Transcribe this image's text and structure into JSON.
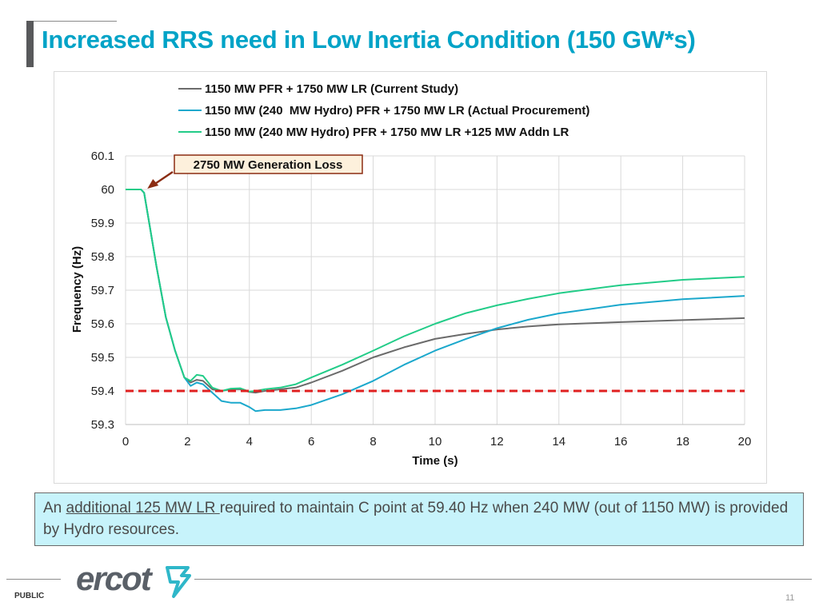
{
  "slide": {
    "title": "Increased RRS need in Low Inertia Condition (150 GW*s)",
    "note_prefix": "An ",
    "note_underlined": "additional 125 MW LR ",
    "note_suffix": " required to maintain C point at 59.40 Hz when 240 MW (out of 1150 MW) is provided by Hydro resources.",
    "logo_text": "ercot",
    "footer_label": "PUBLIC",
    "page_number": "11"
  },
  "chart_data": {
    "type": "line",
    "title": "",
    "xlabel": "Time (s)",
    "ylabel": "Frequency (Hz)",
    "xlim": [
      0,
      20
    ],
    "ylim": [
      59.3,
      60.1
    ],
    "xticks": [
      0,
      2,
      4,
      6,
      8,
      10,
      12,
      14,
      16,
      18,
      20
    ],
    "yticks": [
      59.3,
      59.4,
      59.5,
      59.6,
      59.7,
      59.8,
      59.9,
      60,
      60.1
    ],
    "ytick_labels": [
      "59.3",
      "59.4",
      "59.5",
      "59.6",
      "59.7",
      "59.8",
      "59.9",
      "60",
      "60.1"
    ],
    "grid": true,
    "legend_position": "top",
    "annotation": {
      "text": "2750 MW Generation Loss",
      "x": 0.6,
      "y": 60.0
    },
    "reference_line": {
      "name": "59.4 Hz threshold",
      "y": 59.4,
      "color": "#e02020",
      "style": "dashed"
    },
    "series": [
      {
        "name": "1150 MW PFR + 1750 MW LR (Current Study)",
        "color": "#6b6b6b",
        "x": [
          0,
          0.5,
          0.6,
          0.8,
          1.0,
          1.3,
          1.6,
          1.9,
          2.1,
          2.3,
          2.5,
          2.8,
          3.1,
          3.4,
          3.7,
          4.0,
          4.2,
          4.5,
          5.0,
          5.5,
          6.0,
          7.0,
          8.0,
          9.0,
          10.0,
          11.0,
          12.0,
          13.0,
          14.0,
          16.0,
          18.0,
          20.0
        ],
        "values": [
          60.0,
          60.0,
          59.99,
          59.88,
          59.77,
          59.62,
          59.52,
          59.44,
          59.425,
          59.433,
          59.43,
          59.405,
          59.4,
          59.405,
          59.405,
          59.397,
          59.395,
          59.4,
          59.405,
          59.41,
          59.425,
          59.46,
          59.5,
          59.53,
          59.555,
          59.57,
          59.583,
          59.592,
          59.598,
          59.605,
          59.611,
          59.617
        ]
      },
      {
        "name": "1150 MW (240  MW Hydro) PFR + 1750 MW LR (Actual Procurement)",
        "color": "#1ba8cc",
        "x": [
          0,
          0.5,
          0.6,
          0.8,
          1.0,
          1.3,
          1.6,
          1.9,
          2.1,
          2.3,
          2.5,
          2.8,
          3.1,
          3.4,
          3.7,
          4.0,
          4.2,
          4.5,
          5.0,
          5.5,
          6.0,
          7.0,
          8.0,
          9.0,
          10.0,
          11.0,
          12.0,
          13.0,
          14.0,
          16.0,
          18.0,
          20.0
        ],
        "values": [
          60.0,
          60.0,
          59.99,
          59.88,
          59.77,
          59.62,
          59.52,
          59.44,
          59.415,
          59.425,
          59.42,
          59.395,
          59.37,
          59.365,
          59.365,
          59.352,
          59.34,
          59.343,
          59.343,
          59.348,
          59.358,
          59.39,
          59.43,
          59.478,
          59.52,
          59.555,
          59.587,
          59.612,
          59.631,
          59.657,
          59.673,
          59.683
        ]
      },
      {
        "name": "1150 MW (240 MW Hydro) PFR + 1750 MW LR +125 MW Addn LR",
        "color": "#22cc88",
        "x": [
          0,
          0.5,
          0.6,
          0.8,
          1.0,
          1.3,
          1.6,
          1.9,
          2.1,
          2.3,
          2.5,
          2.8,
          3.1,
          3.4,
          3.7,
          4.0,
          4.2,
          4.5,
          5.0,
          5.5,
          6.0,
          7.0,
          8.0,
          9.0,
          10.0,
          11.0,
          12.0,
          13.0,
          14.0,
          16.0,
          18.0,
          20.0
        ],
        "values": [
          60.0,
          60.0,
          59.99,
          59.88,
          59.77,
          59.62,
          59.52,
          59.44,
          59.43,
          59.448,
          59.445,
          59.41,
          59.4,
          59.407,
          59.408,
          59.398,
          59.4,
          59.405,
          59.41,
          59.42,
          59.44,
          59.478,
          59.52,
          59.563,
          59.6,
          59.632,
          59.655,
          59.674,
          59.691,
          59.715,
          59.731,
          59.74
        ]
      }
    ]
  }
}
